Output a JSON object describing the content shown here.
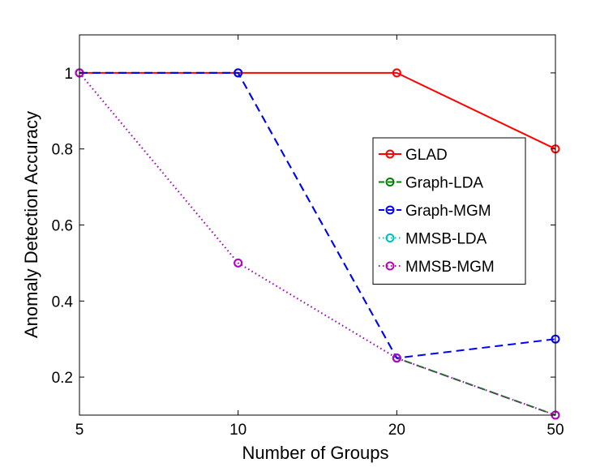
{
  "chart_data": {
    "type": "line",
    "xlabel": "Number of Groups",
    "ylabel": "Anomaly Detection Accuracy",
    "categories": [
      "5",
      "10",
      "20",
      "50"
    ],
    "ylim": [
      0.1,
      1.1
    ],
    "yticks": [
      0.2,
      0.4,
      0.6,
      0.8,
      1
    ],
    "ytick_labels": [
      "0.2",
      "0.4",
      "0.6",
      "0.8",
      "1"
    ],
    "grid": false,
    "legend_position": "right",
    "series": [
      {
        "name": "GLAD",
        "values": [
          1.0,
          1.0,
          1.0,
          0.8
        ],
        "color": "#ff0000",
        "style": "solid"
      },
      {
        "name": "Graph-LDA",
        "values": [
          1.0,
          1.0,
          0.25,
          0.1
        ],
        "color": "#008000",
        "style": "dashed"
      },
      {
        "name": "Graph-MGM",
        "values": [
          1.0,
          1.0,
          0.25,
          0.3
        ],
        "color": "#0000ff",
        "style": "dashed"
      },
      {
        "name": "MMSB-LDA",
        "values": [
          1.0,
          0.5,
          0.25,
          0.1
        ],
        "color": "#00bfbf",
        "style": "dotted"
      },
      {
        "name": "MMSB-MGM",
        "values": [
          1.0,
          0.5,
          0.25,
          0.1
        ],
        "color": "#bf00bf",
        "style": "dotted"
      }
    ]
  }
}
